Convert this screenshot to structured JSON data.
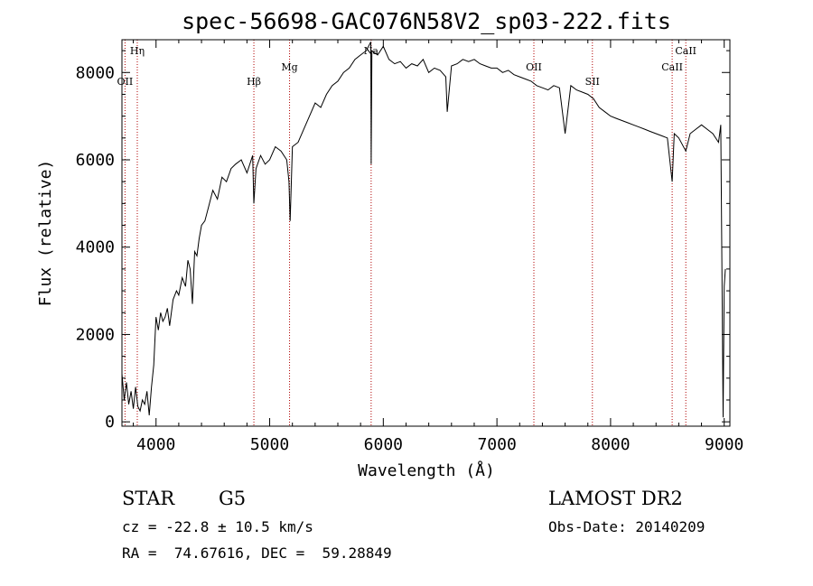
{
  "chart_data": {
    "type": "line",
    "title": "spec-56698-GAC076N58V2_sp03-222.fits",
    "xlabel": "Wavelength (Å)",
    "ylabel": "Flux (relative)",
    "xlim": [
      3700,
      9050
    ],
    "ylim": [
      -100,
      8750
    ],
    "xticks": [
      4000,
      5000,
      6000,
      7000,
      8000,
      9000
    ],
    "yticks": [
      0,
      2000,
      4000,
      6000,
      8000
    ],
    "grid": false,
    "series": [
      {
        "x": [
          3700,
          3720,
          3740,
          3760,
          3780,
          3800,
          3820,
          3840,
          3860,
          3880,
          3900,
          3920,
          3940,
          3960,
          3980,
          4000,
          4020,
          4040,
          4060,
          4080,
          4100,
          4120,
          4150,
          4180,
          4200,
          4230,
          4260,
          4280,
          4300,
          4320,
          4340,
          4360,
          4380,
          4400,
          4430,
          4460,
          4500,
          4540,
          4580,
          4620,
          4660,
          4700,
          4750,
          4800,
          4850,
          4861,
          4880,
          4920,
          4960,
          5000,
          5050,
          5100,
          5150,
          5170,
          5180,
          5200,
          5250,
          5300,
          5350,
          5400,
          5450,
          5500,
          5550,
          5600,
          5650,
          5700,
          5750,
          5800,
          5850,
          5890,
          5893,
          5900,
          5950,
          6000,
          6050,
          6100,
          6150,
          6200,
          6250,
          6300,
          6350,
          6400,
          6450,
          6500,
          6550,
          6563,
          6600,
          6650,
          6700,
          6750,
          6800,
          6850,
          6900,
          6950,
          7000,
          7050,
          7100,
          7150,
          7200,
          7250,
          7300,
          7350,
          7400,
          7450,
          7500,
          7550,
          7600,
          7650,
          7700,
          7750,
          7800,
          7850,
          7900,
          7950,
          8000,
          8050,
          8100,
          8150,
          8200,
          8250,
          8300,
          8350,
          8400,
          8450,
          8500,
          8542,
          8560,
          8600,
          8662,
          8700,
          8750,
          8800,
          8850,
          8900,
          8950,
          8960,
          8970,
          8990,
          9000,
          9010
        ],
        "values": [
          1100,
          500,
          900,
          400,
          700,
          300,
          800,
          350,
          250,
          500,
          400,
          700,
          150,
          800,
          1300,
          2400,
          2100,
          2500,
          2300,
          2400,
          2600,
          2200,
          2800,
          3000,
          2900,
          3300,
          3100,
          3700,
          3500,
          2700,
          3900,
          3800,
          4200,
          4500,
          4600,
          4900,
          5300,
          5100,
          5600,
          5500,
          5800,
          5900,
          6000,
          5700,
          6100,
          5000,
          5800,
          6100,
          5900,
          6000,
          6300,
          6200,
          6000,
          5500,
          4600,
          6300,
          6400,
          6700,
          7000,
          7300,
          7200,
          7500,
          7700,
          7800,
          8000,
          8100,
          8300,
          8400,
          8500,
          8700,
          5900,
          8500,
          8400,
          8600,
          8300,
          8200,
          8250,
          8100,
          8200,
          8150,
          8300,
          8000,
          8100,
          8050,
          7900,
          7100,
          8150,
          8200,
          8300,
          8250,
          8300,
          8200,
          8150,
          8100,
          8100,
          8000,
          8050,
          7950,
          7900,
          7850,
          7800,
          7700,
          7650,
          7600,
          7700,
          7650,
          6600,
          7700,
          7600,
          7550,
          7500,
          7400,
          7200,
          7100,
          7000,
          6950,
          6900,
          6850,
          6800,
          6750,
          6700,
          6650,
          6600,
          6550,
          6500,
          5500,
          6600,
          6500,
          6200,
          6600,
          6700,
          6800,
          6700,
          6600,
          6400,
          6600,
          6800,
          100,
          3100,
          3500
        ]
      }
    ],
    "lines": [
      {
        "label": "OII",
        "x": 3727,
        "level": "upper-low"
      },
      {
        "label": "Hη",
        "x": 3835,
        "level": "top"
      },
      {
        "label": "Hβ",
        "x": 4861,
        "level": "upper-low"
      },
      {
        "label": "Mg",
        "x": 5175,
        "level": "upper-mid"
      },
      {
        "label": "Na",
        "x": 5893,
        "level": "top"
      },
      {
        "label": "OII",
        "x": 7325,
        "level": "upper-mid"
      },
      {
        "label": "SII",
        "x": 7840,
        "level": "upper-low"
      },
      {
        "label": "CaII",
        "x": 8542,
        "level": "upper-mid"
      },
      {
        "label": "CaII",
        "x": 8662,
        "level": "top"
      }
    ]
  },
  "info": {
    "class": "STAR",
    "subclass": "G5",
    "survey": "LAMOST DR2",
    "cz": "cz = -22.8 ± 10.5 km/s",
    "obsdate": "Obs-Date: 20140209",
    "radec": "RA =  74.67616, DEC =  59.28849"
  }
}
